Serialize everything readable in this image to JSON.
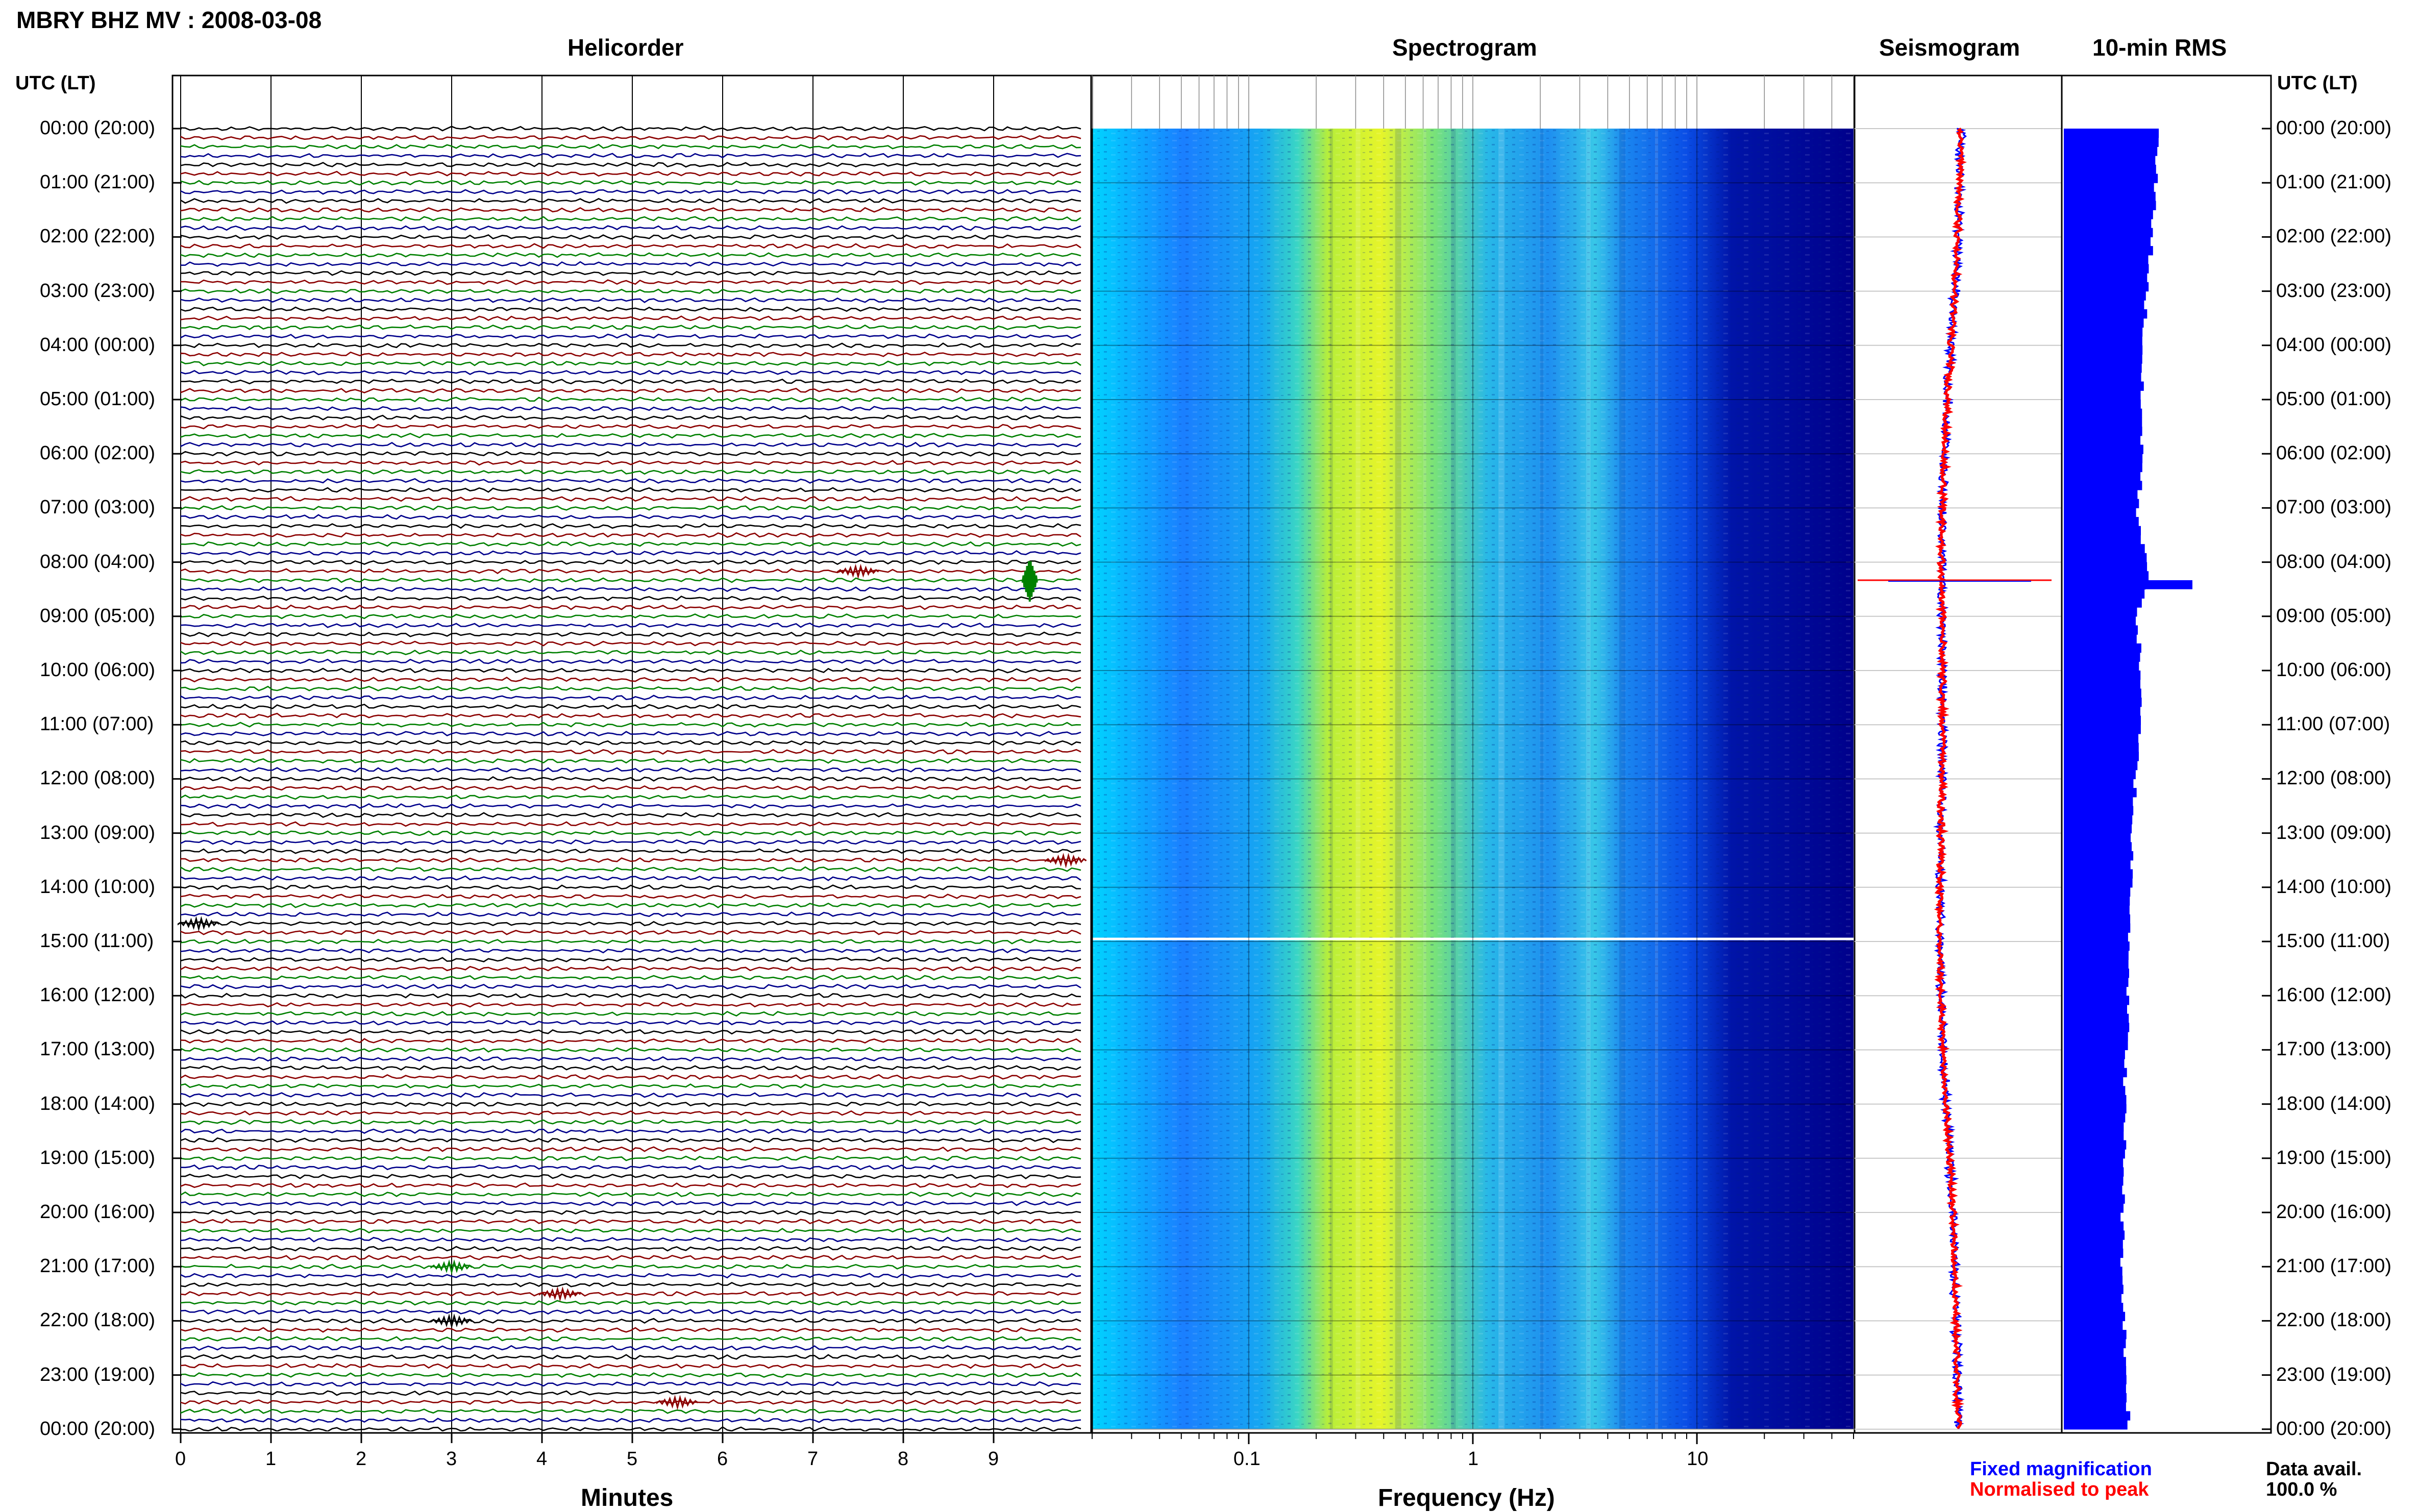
{
  "header": {
    "title": "MBRY BHZ MV : 2008-03-08",
    "utc_lt_left": "UTC (LT)",
    "utc_lt_right": "UTC (LT)"
  },
  "panels": {
    "helicorder": "Helicorder",
    "spectrogram": "Spectrogram",
    "seismogram": "Seismogram",
    "rms": "10-min RMS"
  },
  "footer": {
    "fixed_magnification": "Fixed magnification",
    "normalised_to_peak": "Normalised to peak",
    "data_avail_label": "Data avail.",
    "data_avail_value": "100.0 %"
  },
  "colors": {
    "fixed_magnification": "#0000ff",
    "normalised_to_peak": "#ff0000",
    "rms_bars": "#0000ff",
    "trace_cycle": [
      "#000000",
      "#8b0000",
      "#008000",
      "#00008b"
    ]
  },
  "chart_data": [
    {
      "type": "line",
      "name": "helicorder",
      "title": "Helicorder",
      "xlabel": "Minutes",
      "xlim": [
        0,
        10
      ],
      "xticks": [
        "0",
        "1",
        "2",
        "3",
        "4",
        "5",
        "6",
        "7",
        "8",
        "9"
      ],
      "rows_per_hour": 6,
      "hours": 24,
      "events": [
        {
          "time": "08:20",
          "minute": 9.4,
          "note": "large signal"
        },
        {
          "time": "08:10",
          "minute": 7.5
        },
        {
          "time": "14:40",
          "minute": 0.2
        },
        {
          "time": "13:30",
          "minute": 9.8
        },
        {
          "time": "21:00",
          "minute": 3.0
        },
        {
          "time": "21:30",
          "minute": 4.2
        },
        {
          "time": "22:00",
          "minute": 3.0
        },
        {
          "time": "23:30",
          "minute": 5.5
        }
      ]
    },
    {
      "type": "heatmap",
      "name": "spectrogram",
      "title": "Spectrogram",
      "xlabel": "Frequency (Hz)",
      "xscale": "log",
      "xlim": [
        0.02,
        50
      ],
      "xticks": [
        "0.1",
        "1",
        "10"
      ],
      "data_gap_time": "15:00"
    },
    {
      "type": "line",
      "name": "seismogram",
      "title": "Seismogram",
      "series": [
        {
          "name": "Fixed magnification",
          "color": "#0000ff"
        },
        {
          "name": "Normalised to peak",
          "color": "#ff0000"
        }
      ],
      "spike_time": "08:20"
    },
    {
      "type": "bar",
      "name": "rms",
      "title": "10-min RMS",
      "hourly_rms": [
        0.51,
        0.5,
        0.48,
        0.45,
        0.43,
        0.42,
        0.43,
        0.4,
        0.46,
        0.4,
        0.42,
        0.41,
        0.39,
        0.37,
        0.37,
        0.36,
        0.35,
        0.34,
        0.33,
        0.33,
        0.32,
        0.32,
        0.33,
        0.34,
        0.36
      ],
      "peak": {
        "time": "08:20",
        "value": 0.7
      }
    }
  ],
  "time_labels": [
    "00:00 (20:00)",
    "01:00 (21:00)",
    "02:00 (22:00)",
    "03:00 (23:00)",
    "04:00 (00:00)",
    "05:00 (01:00)",
    "06:00 (02:00)",
    "07:00 (03:00)",
    "08:00 (04:00)",
    "09:00 (05:00)",
    "10:00 (06:00)",
    "11:00 (07:00)",
    "12:00 (08:00)",
    "13:00 (09:00)",
    "14:00 (10:00)",
    "15:00 (11:00)",
    "16:00 (12:00)",
    "17:00 (13:00)",
    "18:00 (14:00)",
    "19:00 (15:00)",
    "20:00 (16:00)",
    "21:00 (17:00)",
    "22:00 (18:00)",
    "23:00 (19:00)",
    "00:00 (20:00)"
  ]
}
